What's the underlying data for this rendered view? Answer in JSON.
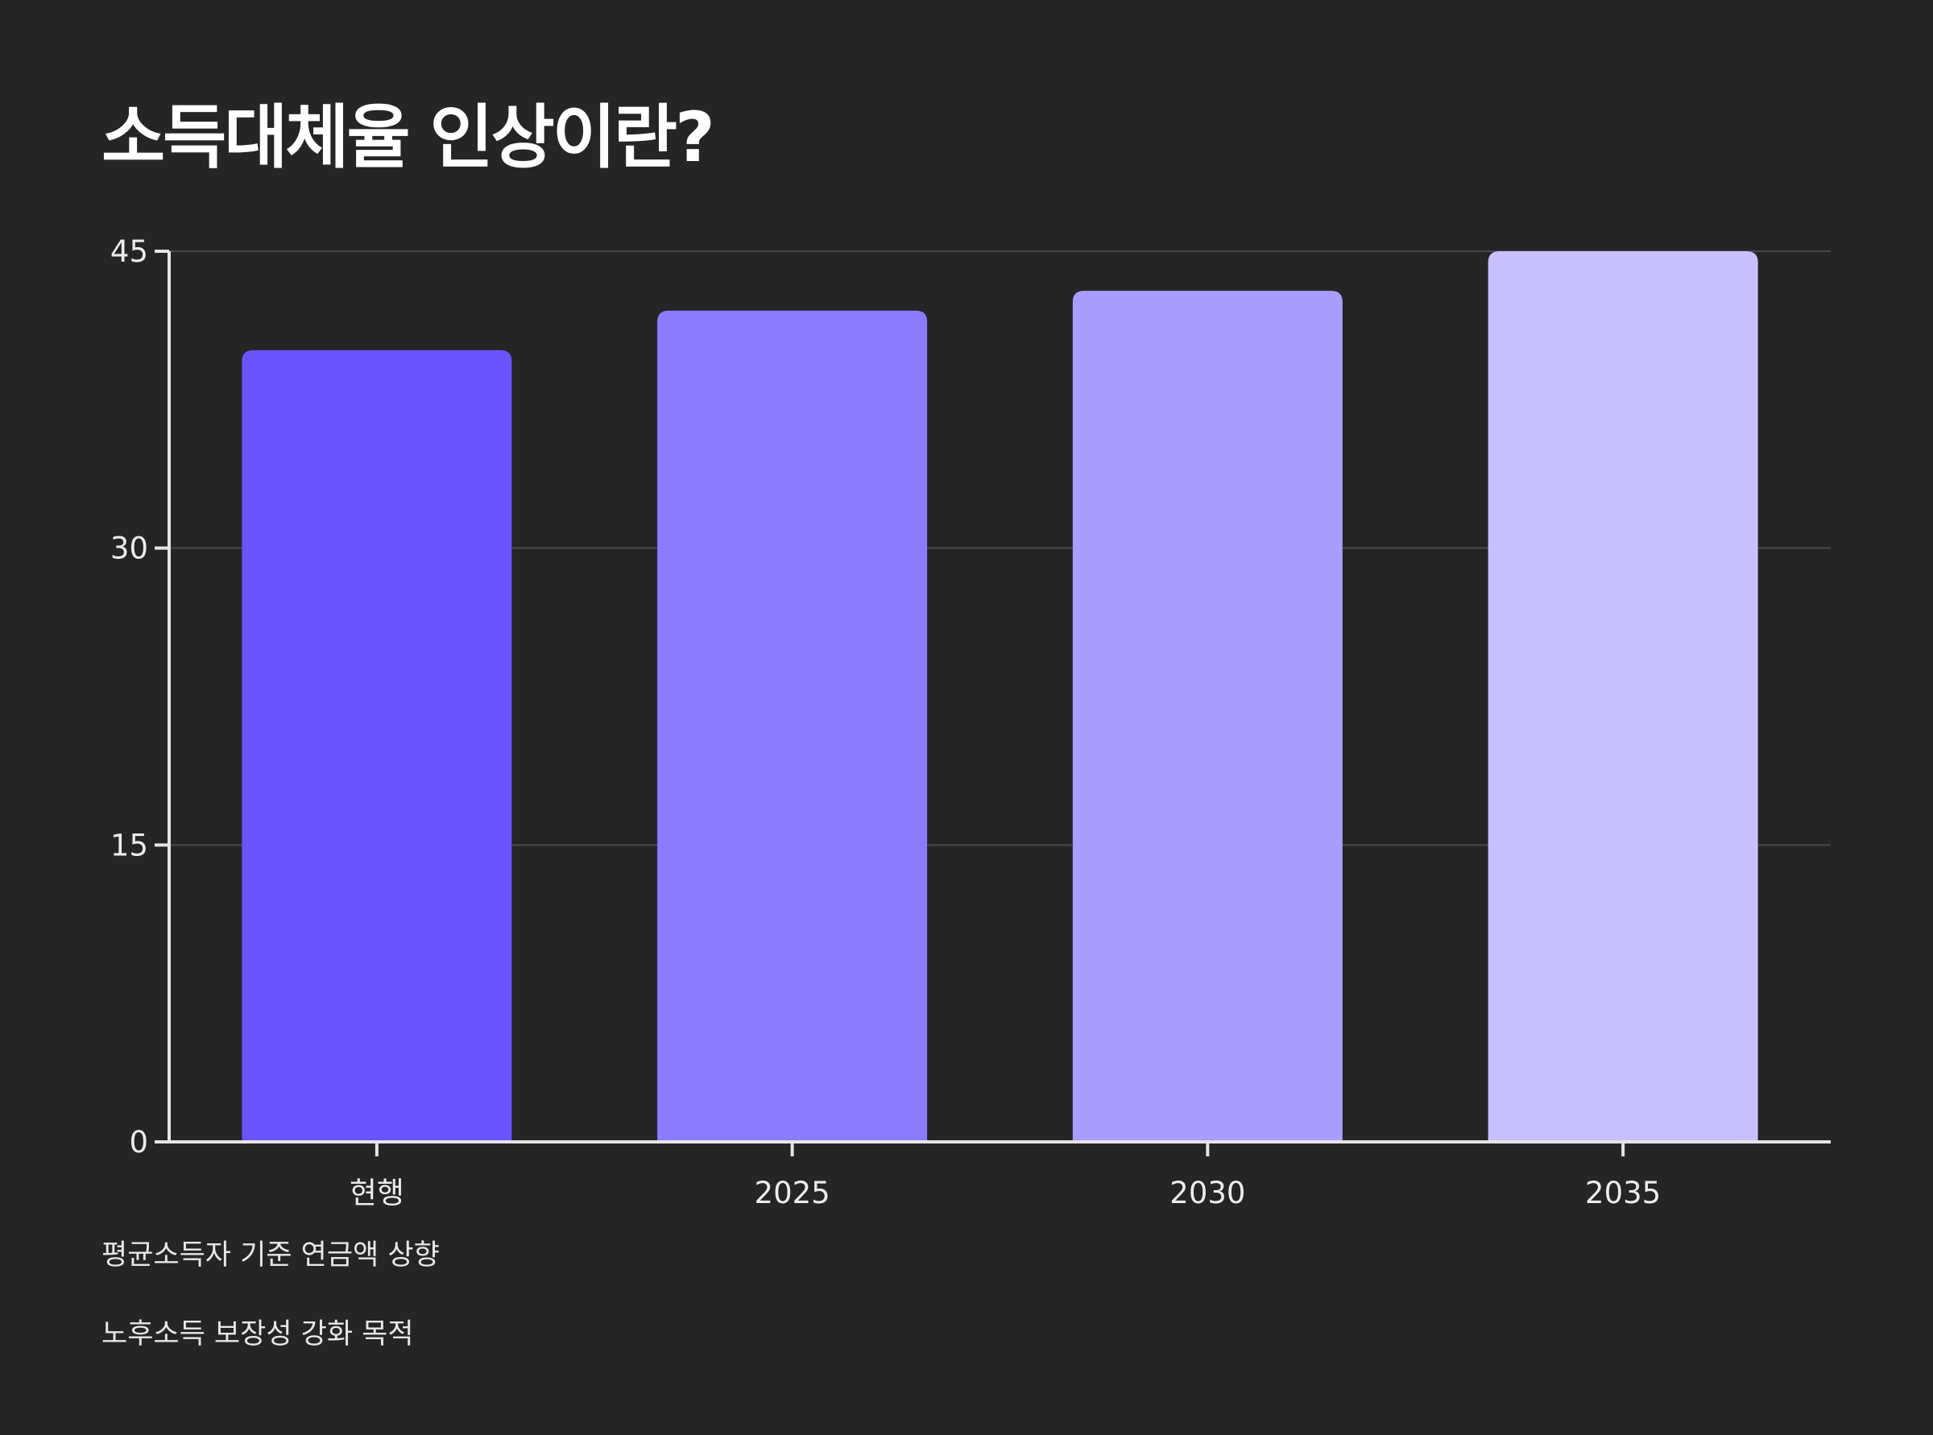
{
  "title": "소득대체율 인상이란?",
  "notes": [
    "평균소득자 기준 연금액 상향",
    "노후소득 보장성 강화 목적"
  ],
  "colors": {
    "background": "#262526",
    "axis": "#e6e4e7",
    "grid": "#4a494b",
    "bars": [
      "#6954ff",
      "#8a7bff",
      "#a99dff",
      "#c9c1ff"
    ]
  },
  "chart_data": {
    "type": "bar",
    "categories": [
      "현행",
      "2025",
      "2030",
      "2035"
    ],
    "values": [
      40,
      42,
      43,
      45
    ],
    "ylim": [
      0,
      45
    ],
    "yticks": [
      0,
      15,
      30,
      45
    ],
    "grid": true,
    "legend": "none"
  }
}
